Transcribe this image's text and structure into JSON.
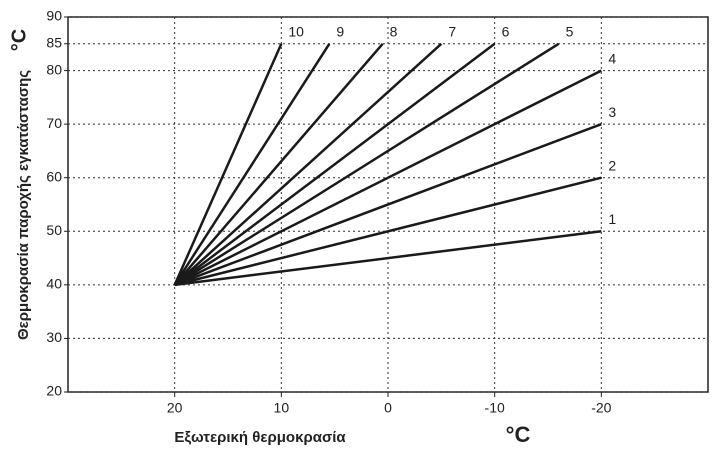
{
  "chart_data": {
    "type": "line",
    "y_label": "Θερμοκρασία παροχής εγκατάστασης",
    "x_label": "Εξωτερική θερμοκρασία",
    "y_unit": "°C",
    "x_unit": "°C",
    "xlim": [
      30,
      -30
    ],
    "xticks": [
      20,
      10,
      0,
      -10,
      -20
    ],
    "ylim": [
      20,
      90
    ],
    "yticks": [
      20,
      30,
      40,
      50,
      60,
      70,
      80,
      85,
      90
    ],
    "grid": true,
    "color": "#1a1a1a",
    "series": [
      {
        "name": "1",
        "x": [
          20,
          -20
        ],
        "values": [
          40,
          50
        ]
      },
      {
        "name": "2",
        "x": [
          20,
          -20
        ],
        "values": [
          40,
          60
        ]
      },
      {
        "name": "3",
        "x": [
          20,
          -20
        ],
        "values": [
          40,
          70
        ]
      },
      {
        "name": "4",
        "x": [
          20,
          -20
        ],
        "values": [
          40,
          80
        ]
      },
      {
        "name": "5",
        "x": [
          20,
          -16
        ],
        "values": [
          40,
          85
        ]
      },
      {
        "name": "6",
        "x": [
          20,
          -10
        ],
        "values": [
          40,
          85
        ]
      },
      {
        "name": "7",
        "x": [
          20,
          -5
        ],
        "values": [
          40,
          85
        ]
      },
      {
        "name": "8",
        "x": [
          20,
          0.5
        ],
        "values": [
          40,
          85
        ]
      },
      {
        "name": "9",
        "x": [
          20,
          5.5
        ],
        "values": [
          40,
          85
        ]
      },
      {
        "name": "10",
        "x": [
          20,
          10
        ],
        "values": [
          40,
          85
        ]
      }
    ]
  }
}
